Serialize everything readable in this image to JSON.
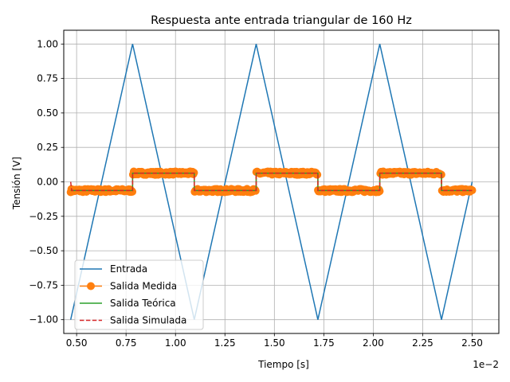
{
  "chart_data": {
    "type": "line",
    "title": "Respuesta ante entrada triangular de 160 Hz",
    "xlabel": "Tiempo [s]",
    "ylabel": "Tensión [V]",
    "x_offset_label": "1e−2",
    "xlim": [
      0.00435,
      0.02635
    ],
    "ylim": [
      -1.1,
      1.1
    ],
    "x_ticks": [
      0.005,
      0.0075,
      0.01,
      0.0125,
      0.015,
      0.0175,
      0.02,
      0.0225,
      0.025
    ],
    "x_tick_labels": [
      "0.50",
      "0.75",
      "1.00",
      "1.25",
      "1.50",
      "1.75",
      "2.00",
      "2.25",
      "2.50"
    ],
    "y_ticks": [
      -1.0,
      -0.75,
      -0.5,
      -0.25,
      0.0,
      0.25,
      0.5,
      0.75,
      1.0
    ],
    "y_tick_labels": [
      "−1.00",
      "−0.75",
      "−0.50",
      "−0.25",
      "0.00",
      "0.25",
      "0.50",
      "0.75",
      "1.00"
    ],
    "grid": true,
    "legend_position": "lower-left",
    "series": [
      {
        "name": "Entrada",
        "color": "#1f77b4",
        "style": "solid",
        "marker": "none",
        "x": [
          0.0047,
          0.00783,
          0.01095,
          0.01408,
          0.0172,
          0.02033,
          0.02345,
          0.025
        ],
        "y": [
          -1.0,
          1.0,
          -1.0,
          1.0,
          -1.0,
          1.0,
          -1.0,
          0.0
        ]
      },
      {
        "name": "Salida Medida",
        "color": "#ff7f0e",
        "style": "solid",
        "marker": "circle",
        "x": [
          0.0047,
          0.00783,
          0.00783,
          0.01095,
          0.01095,
          0.01408,
          0.01408,
          0.0172,
          0.0172,
          0.02033,
          0.02033,
          0.02345,
          0.02345,
          0.025
        ],
        "y": [
          -0.063,
          -0.063,
          0.063,
          0.063,
          -0.063,
          -0.063,
          0.063,
          0.063,
          -0.063,
          -0.063,
          0.063,
          0.063,
          -0.063,
          -0.063
        ],
        "noise_amplitude": 0.012
      },
      {
        "name": "Salida Teórica",
        "color": "#2ca02c",
        "style": "solid",
        "marker": "none",
        "x": [
          0.0047,
          0.00783,
          0.00783,
          0.01095,
          0.01095,
          0.01408,
          0.01408,
          0.0172,
          0.0172,
          0.02033,
          0.02033,
          0.02345,
          0.02345,
          0.025
        ],
        "y": [
          -0.063,
          -0.063,
          0.063,
          0.063,
          -0.063,
          -0.063,
          0.063,
          0.063,
          -0.063,
          -0.063,
          0.063,
          0.063,
          -0.063,
          -0.063
        ]
      },
      {
        "name": "Salida Simulada",
        "color": "#d62728",
        "style": "dashed",
        "marker": "none",
        "x": [
          0.0047,
          0.00475,
          0.00783,
          0.00783,
          0.01095,
          0.01095,
          0.01408,
          0.01408,
          0.0172,
          0.0172,
          0.02033,
          0.02033,
          0.02345,
          0.02345,
          0.025
        ],
        "y": [
          0.0,
          -0.063,
          -0.063,
          0.063,
          0.063,
          -0.063,
          -0.063,
          0.063,
          0.063,
          -0.063,
          -0.063,
          0.063,
          0.063,
          -0.063,
          -0.063
        ]
      }
    ]
  }
}
